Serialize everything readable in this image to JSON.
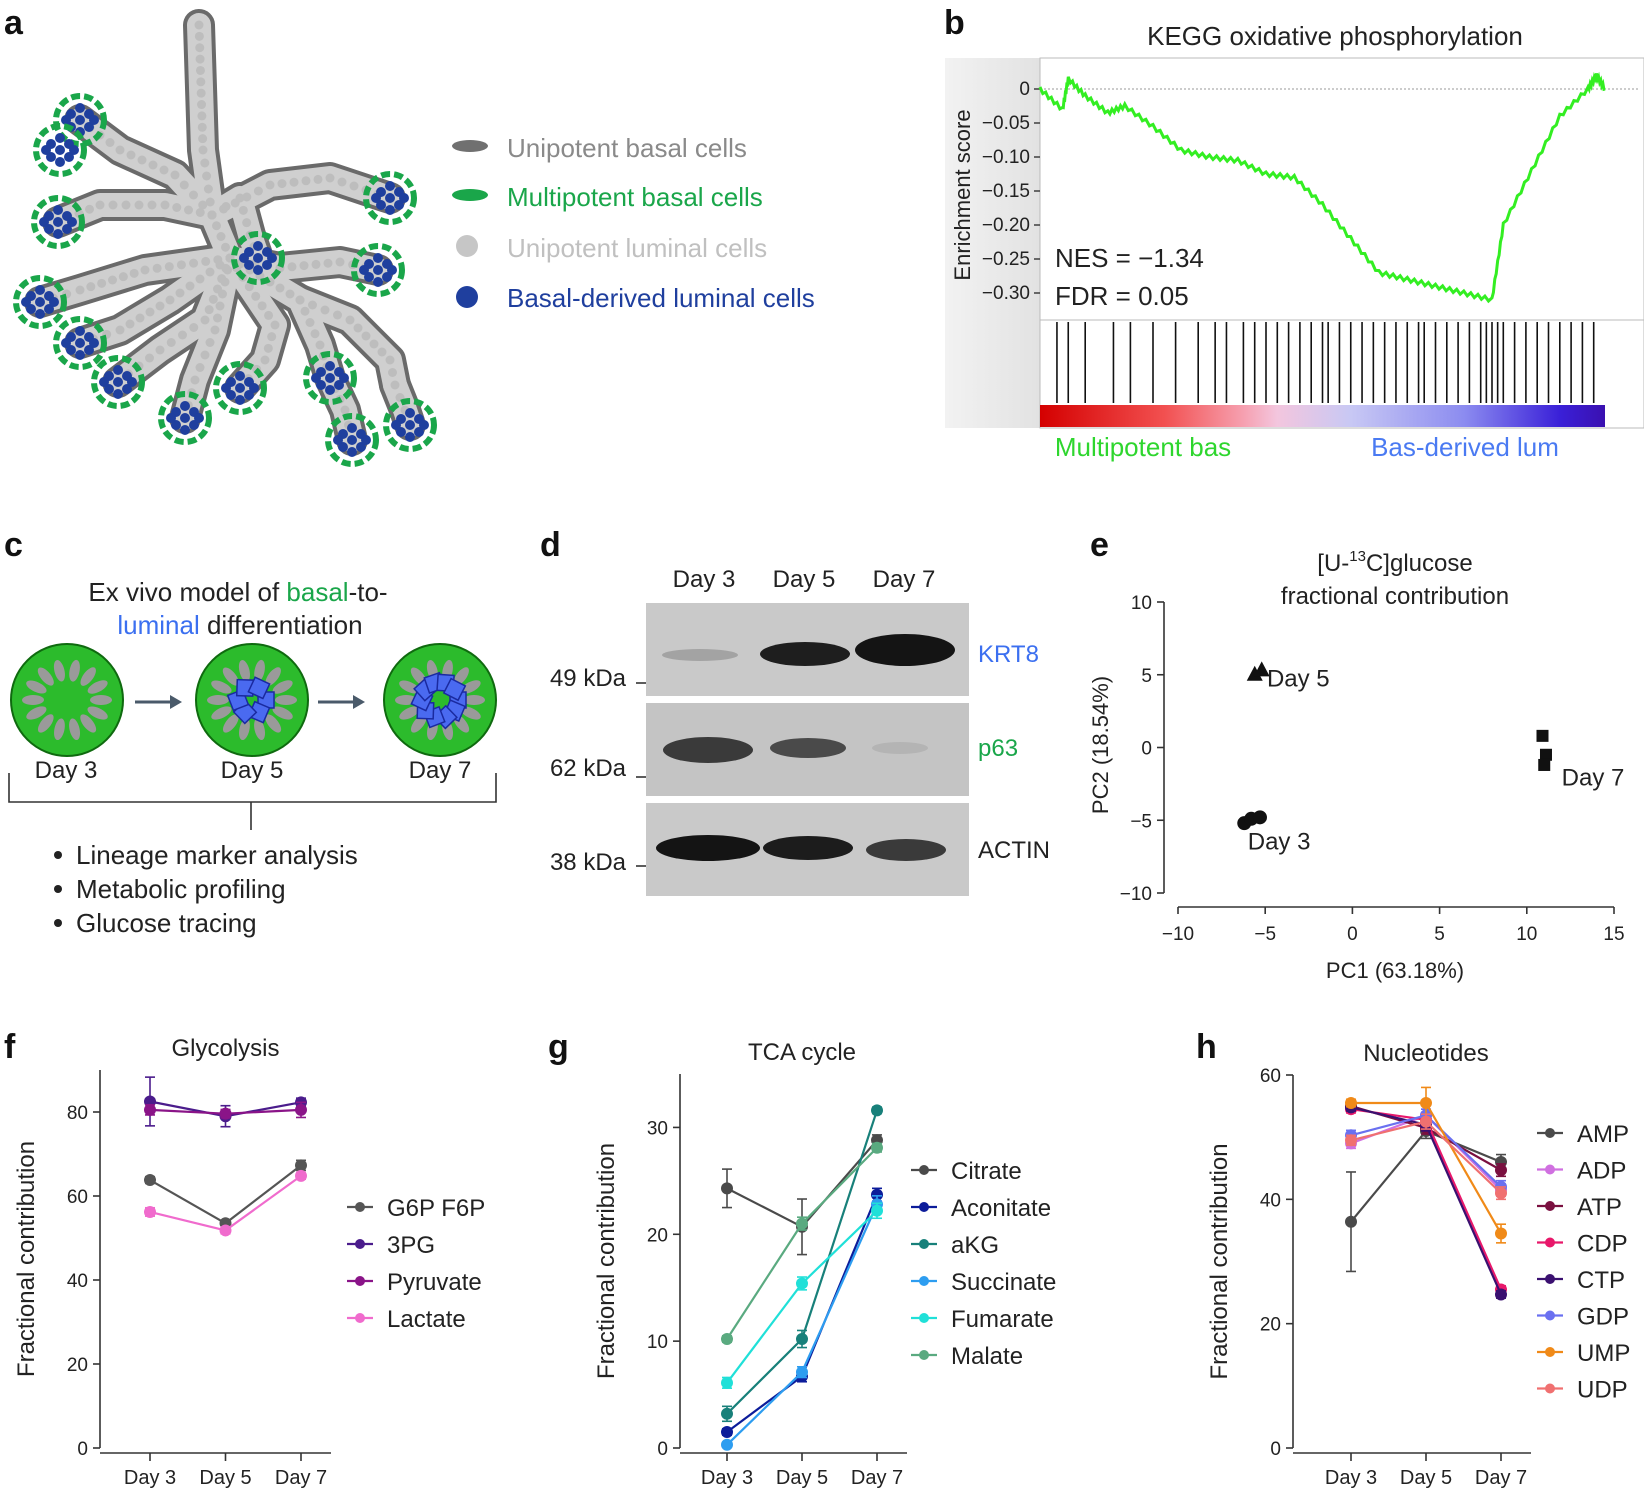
{
  "panels": {
    "a": "a",
    "b": "b",
    "c": "c",
    "d": "d",
    "e": "e",
    "f": "f",
    "g": "g",
    "h": "h"
  },
  "panel_a": {
    "legend": [
      {
        "label": "Unipotent basal cells",
        "color": "#707070"
      },
      {
        "label": "Multipotent basal cells",
        "color": "#1aa64a"
      },
      {
        "label": "Unipotent luminal cells",
        "color": "#c6c6c6"
      },
      {
        "label": "Basal-derived luminal cells",
        "color": "#1f3f9e"
      }
    ]
  },
  "panel_b": {
    "title": "KEGG oxidative phosphorylation",
    "ylabel": "Enrichment score",
    "yticks": [
      "0",
      "−0.05",
      "−0.10",
      "−0.15",
      "−0.20",
      "−0.25",
      "−0.30"
    ],
    "nes": "NES = −1.34",
    "fdr": "FDR = 0.05",
    "left_label": "Multipotent bas",
    "right_label": "Bas-derived lum"
  },
  "panel_c": {
    "title_pre": "Ex vivo model of ",
    "title_basal": "basal",
    "title_mid": "-to-",
    "title_luminal": "luminal",
    "title_post": " differentiation",
    "stages": [
      "Day 3",
      "Day 5",
      "Day 7"
    ],
    "bullets": [
      "Lineage marker analysis",
      "Metabolic profiling",
      "Glucose tracing"
    ]
  },
  "panel_d": {
    "lanes": [
      "Day 3",
      "Day 5",
      "Day 7"
    ],
    "markers": [
      {
        "weight": "49 kDa",
        "protein": "KRT8",
        "color": "#3b6ff0"
      },
      {
        "weight": "62 kDa",
        "protein": "p63",
        "color": "#1aa64a"
      },
      {
        "weight": "38 kDa",
        "protein": "ACTIN",
        "color": "#222222"
      }
    ]
  },
  "chart_data": [
    {
      "id": "e",
      "type": "scatter",
      "title_line1_pre": "[U-",
      "title_line1_sup": "13",
      "title_line1_post": "C]glucose",
      "title_line2": "fractional contribution",
      "xlabel": "PC1 (63.18%)",
      "ylabel": "PC2 (18.54%)",
      "xlim": [
        -10,
        15
      ],
      "ylim": [
        -10,
        10
      ],
      "xticks": [
        "−10",
        "−5",
        "0",
        "5",
        "10",
        "15"
      ],
      "yticks": [
        "10",
        "5",
        "0",
        "−5",
        "−10"
      ],
      "groups": [
        {
          "name": "Day 3",
          "marker": "circle",
          "points": [
            [
              -6.2,
              -5.2
            ],
            [
              -5.8,
              -4.9
            ],
            [
              -5.3,
              -4.8
            ]
          ]
        },
        {
          "name": "Day 5",
          "marker": "triangle",
          "points": [
            [
              -5.6,
              5.0
            ],
            [
              -5.2,
              5.3
            ]
          ]
        },
        {
          "name": "Day 7",
          "marker": "square",
          "points": [
            [
              10.9,
              0.8
            ],
            [
              11.1,
              -0.5
            ],
            [
              11.0,
              -1.2
            ]
          ]
        }
      ]
    },
    {
      "id": "f",
      "type": "line",
      "title": "Glycolysis",
      "ylabel": "Fractional contribution",
      "categories": [
        "Day 3",
        "Day 5",
        "Day 7"
      ],
      "ylim": [
        0,
        90
      ],
      "yticks": [
        0,
        20,
        40,
        60,
        80
      ],
      "series": [
        {
          "name": "G6P F6P",
          "color": "#555555",
          "values": [
            63.8,
            53.5,
            67.3
          ],
          "err": [
            0.8,
            0.5,
            1.2
          ]
        },
        {
          "name": "3PG",
          "color": "#4b1c8c",
          "values": [
            82.5,
            79.0,
            82.3
          ],
          "err": [
            5.8,
            2.5,
            1.0
          ]
        },
        {
          "name": "Pyruvate",
          "color": "#8a1488",
          "values": [
            80.5,
            79.6,
            80.5
          ],
          "err": [
            1.2,
            1.0,
            1.8
          ]
        },
        {
          "name": "Lactate",
          "color": "#f06bcd",
          "values": [
            56.2,
            51.8,
            64.8
          ],
          "err": [
            1.0,
            0.8,
            0.8
          ]
        }
      ]
    },
    {
      "id": "g",
      "type": "line",
      "title": "TCA cycle",
      "ylabel": "Fractional contribution",
      "categories": [
        "Day 3",
        "Day 5",
        "Day 7"
      ],
      "ylim": [
        0,
        35
      ],
      "yticks": [
        0,
        10,
        20,
        30
      ],
      "series": [
        {
          "name": "Citrate",
          "color": "#4a4a4a",
          "values": [
            24.3,
            20.7,
            28.8
          ],
          "err": [
            1.8,
            2.6,
            0.5
          ]
        },
        {
          "name": "Aconitate",
          "color": "#0c1c9a",
          "values": [
            1.5,
            6.7,
            23.7
          ],
          "err": [
            0.3,
            0.5,
            0.6
          ]
        },
        {
          "name": "aKG",
          "color": "#18807a",
          "values": [
            3.2,
            10.2,
            31.6
          ],
          "err": [
            0.7,
            0.8,
            0.3
          ]
        },
        {
          "name": "Succinate",
          "color": "#2d9df0",
          "values": [
            0.3,
            7.1,
            22.8
          ],
          "err": [
            0.2,
            0.5,
            0.8
          ]
        },
        {
          "name": "Fumarate",
          "color": "#20e0d8",
          "values": [
            6.1,
            15.4,
            22.2
          ],
          "err": [
            0.5,
            0.6,
            0.7
          ]
        },
        {
          "name": "Malate",
          "color": "#5aaa80",
          "values": [
            10.2,
            21.0,
            28.1
          ],
          "err": [
            0.3,
            0.6,
            0.4
          ]
        }
      ]
    },
    {
      "id": "h",
      "type": "line",
      "title": "Nucleotides",
      "ylabel": "Fractional contribution",
      "categories": [
        "Day 3",
        "Day 5",
        "Day 7"
      ],
      "ylim": [
        0,
        60
      ],
      "yticks": [
        0,
        20,
        40,
        60
      ],
      "series": [
        {
          "name": "AMP",
          "color": "#4a4a4a",
          "values": [
            36.4,
            51.0,
            46.0
          ],
          "err": [
            8.0,
            1.2,
            1.2
          ]
        },
        {
          "name": "ADP",
          "color": "#d070e0",
          "values": [
            49.0,
            53.5,
            41.5
          ],
          "err": [
            0.8,
            1.0,
            1.0
          ]
        },
        {
          "name": "ATP",
          "color": "#7a1040",
          "values": [
            55.0,
            51.5,
            44.7
          ],
          "err": [
            0.6,
            1.0,
            1.0
          ]
        },
        {
          "name": "CDP",
          "color": "#e8186a",
          "values": [
            54.5,
            52.8,
            25.5
          ],
          "err": [
            0.6,
            1.0,
            0.6
          ]
        },
        {
          "name": "CTP",
          "color": "#3a1070",
          "values": [
            54.8,
            52.0,
            24.7
          ],
          "err": [
            0.6,
            1.0,
            0.6
          ]
        },
        {
          "name": "GDP",
          "color": "#6a70f0",
          "values": [
            50.3,
            53.5,
            42.0
          ],
          "err": [
            0.8,
            1.0,
            1.0
          ]
        },
        {
          "name": "UMP",
          "color": "#f08a18",
          "values": [
            55.5,
            55.5,
            34.5
          ],
          "err": [
            0.6,
            2.5,
            1.5
          ]
        },
        {
          "name": "UDP",
          "color": "#f07070",
          "values": [
            49.5,
            52.5,
            41.0
          ],
          "err": [
            0.8,
            1.2,
            1.0
          ]
        }
      ]
    }
  ]
}
